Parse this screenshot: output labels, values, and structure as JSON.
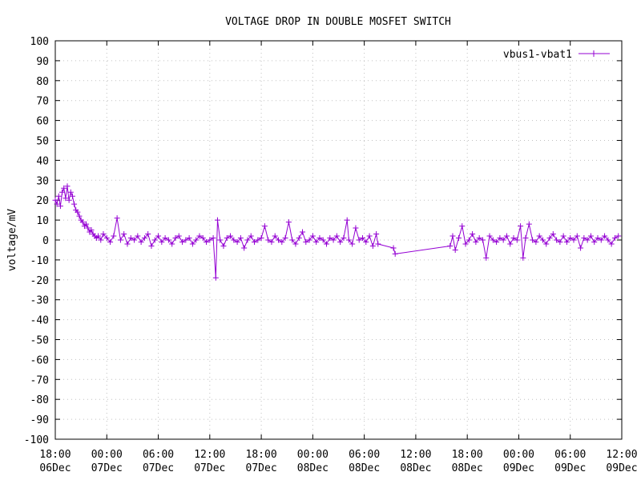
{
  "chart_data": {
    "type": "line",
    "title": "VOLTAGE DROP IN DOUBLE MOSFET SWITCH",
    "xlabel": "",
    "ylabel": "voltage/mV",
    "ylim": [
      -100,
      100
    ],
    "yticks": [
      -100,
      -90,
      -80,
      -70,
      -60,
      -50,
      -40,
      -30,
      -20,
      -10,
      0,
      10,
      20,
      30,
      40,
      50,
      60,
      70,
      80,
      90,
      100
    ],
    "x_unit": "hours since 06Dec 18:00",
    "xlim": [
      0,
      66
    ],
    "xticks": [
      {
        "time": "18:00",
        "date": "06Dec"
      },
      {
        "time": "00:00",
        "date": "07Dec"
      },
      {
        "time": "06:00",
        "date": "07Dec"
      },
      {
        "time": "12:00",
        "date": "07Dec"
      },
      {
        "time": "18:00",
        "date": "07Dec"
      },
      {
        "time": "00:00",
        "date": "08Dec"
      },
      {
        "time": "06:00",
        "date": "08Dec"
      },
      {
        "time": "12:00",
        "date": "08Dec"
      },
      {
        "time": "18:00",
        "date": "08Dec"
      },
      {
        "time": "00:00",
        "date": "09Dec"
      },
      {
        "time": "06:00",
        "date": "09Dec"
      },
      {
        "time": "12:00",
        "date": "09Dec"
      }
    ],
    "grid": true,
    "legend_position": "top-right",
    "series": [
      {
        "name": "vbus1-vbat1",
        "color": "#9400d3",
        "marker": "plus",
        "points": [
          [
            0.0,
            20
          ],
          [
            0.2,
            18
          ],
          [
            0.4,
            22
          ],
          [
            0.6,
            17
          ],
          [
            0.8,
            24
          ],
          [
            1.0,
            26
          ],
          [
            1.2,
            21
          ],
          [
            1.4,
            27
          ],
          [
            1.6,
            20
          ],
          [
            1.8,
            24
          ],
          [
            2.0,
            22
          ],
          [
            2.2,
            18
          ],
          [
            2.4,
            15
          ],
          [
            2.6,
            14
          ],
          [
            2.8,
            12
          ],
          [
            3.0,
            10
          ],
          [
            3.2,
            9
          ],
          [
            3.4,
            7
          ],
          [
            3.6,
            8
          ],
          [
            3.8,
            6
          ],
          [
            4.0,
            4
          ],
          [
            4.2,
            5
          ],
          [
            4.4,
            3
          ],
          [
            4.6,
            2
          ],
          [
            4.8,
            1
          ],
          [
            5.0,
            2
          ],
          [
            5.3,
            0
          ],
          [
            5.6,
            3
          ],
          [
            6.0,
            1
          ],
          [
            6.4,
            -1
          ],
          [
            6.8,
            2
          ],
          [
            7.2,
            11
          ],
          [
            7.6,
            0
          ],
          [
            8.0,
            3
          ],
          [
            8.4,
            -2
          ],
          [
            8.8,
            1
          ],
          [
            9.2,
            0
          ],
          [
            9.6,
            2
          ],
          [
            10.0,
            -1
          ],
          [
            10.4,
            1
          ],
          [
            10.8,
            3
          ],
          [
            11.2,
            -3
          ],
          [
            11.6,
            0
          ],
          [
            12.0,
            2
          ],
          [
            12.4,
            -1
          ],
          [
            12.8,
            1
          ],
          [
            13.2,
            0
          ],
          [
            13.6,
            -2
          ],
          [
            14.0,
            1
          ],
          [
            14.4,
            2
          ],
          [
            14.8,
            -1
          ],
          [
            15.2,
            0
          ],
          [
            15.6,
            1
          ],
          [
            16.0,
            -2
          ],
          [
            16.4,
            0
          ],
          [
            16.8,
            2
          ],
          [
            17.2,
            1
          ],
          [
            17.6,
            -1
          ],
          [
            18.0,
            0
          ],
          [
            18.4,
            1
          ],
          [
            18.7,
            -19
          ],
          [
            18.9,
            10
          ],
          [
            19.2,
            0
          ],
          [
            19.6,
            -3
          ],
          [
            20.0,
            1
          ],
          [
            20.4,
            2
          ],
          [
            20.8,
            0
          ],
          [
            21.2,
            -1
          ],
          [
            21.6,
            1
          ],
          [
            22.0,
            -4
          ],
          [
            22.4,
            0
          ],
          [
            22.8,
            2
          ],
          [
            23.2,
            -1
          ],
          [
            23.6,
            0
          ],
          [
            24.0,
            1
          ],
          [
            24.4,
            7
          ],
          [
            24.8,
            0
          ],
          [
            25.2,
            -1
          ],
          [
            25.6,
            2
          ],
          [
            26.0,
            0
          ],
          [
            26.4,
            -1
          ],
          [
            26.8,
            1
          ],
          [
            27.2,
            9
          ],
          [
            27.6,
            0
          ],
          [
            28.0,
            -2
          ],
          [
            28.4,
            1
          ],
          [
            28.8,
            4
          ],
          [
            29.2,
            -1
          ],
          [
            29.6,
            0
          ],
          [
            30.0,
            2
          ],
          [
            30.4,
            -1
          ],
          [
            30.8,
            1
          ],
          [
            31.2,
            0
          ],
          [
            31.6,
            -2
          ],
          [
            32.0,
            1
          ],
          [
            32.4,
            0
          ],
          [
            32.8,
            2
          ],
          [
            33.2,
            -1
          ],
          [
            33.6,
            1
          ],
          [
            34.0,
            10
          ],
          [
            34.2,
            0
          ],
          [
            34.6,
            -2
          ],
          [
            35.0,
            6
          ],
          [
            35.4,
            0
          ],
          [
            35.8,
            1
          ],
          [
            36.2,
            -1
          ],
          [
            36.6,
            2
          ],
          [
            37.0,
            -3
          ],
          [
            37.4,
            3
          ],
          [
            37.6,
            -2
          ],
          [
            39.4,
            -4
          ],
          [
            39.6,
            -7
          ],
          [
            46.0,
            -3
          ],
          [
            46.3,
            2
          ],
          [
            46.6,
            -5
          ],
          [
            47.0,
            1
          ],
          [
            47.4,
            7
          ],
          [
            47.8,
            -2
          ],
          [
            48.2,
            0
          ],
          [
            48.6,
            3
          ],
          [
            49.0,
            -1
          ],
          [
            49.4,
            1
          ],
          [
            49.8,
            0
          ],
          [
            50.2,
            -9
          ],
          [
            50.6,
            2
          ],
          [
            51.0,
            0
          ],
          [
            51.4,
            -1
          ],
          [
            51.8,
            1
          ],
          [
            52.2,
            0
          ],
          [
            52.6,
            2
          ],
          [
            53.0,
            -2
          ],
          [
            53.4,
            1
          ],
          [
            53.8,
            0
          ],
          [
            54.2,
            7
          ],
          [
            54.5,
            -9
          ],
          [
            54.8,
            1
          ],
          [
            55.2,
            8
          ],
          [
            55.6,
            0
          ],
          [
            56.0,
            -1
          ],
          [
            56.4,
            2
          ],
          [
            56.8,
            0
          ],
          [
            57.2,
            -2
          ],
          [
            57.6,
            1
          ],
          [
            58.0,
            3
          ],
          [
            58.4,
            0
          ],
          [
            58.8,
            -1
          ],
          [
            59.2,
            2
          ],
          [
            59.6,
            -1
          ],
          [
            60.0,
            1
          ],
          [
            60.4,
            0
          ],
          [
            60.8,
            2
          ],
          [
            61.2,
            -4
          ],
          [
            61.6,
            1
          ],
          [
            62.0,
            0
          ],
          [
            62.4,
            2
          ],
          [
            62.8,
            -1
          ],
          [
            63.2,
            1
          ],
          [
            63.6,
            0
          ],
          [
            64.0,
            2
          ],
          [
            64.4,
            0
          ],
          [
            64.8,
            -2
          ],
          [
            65.2,
            1
          ],
          [
            65.6,
            2
          ]
        ]
      }
    ]
  }
}
